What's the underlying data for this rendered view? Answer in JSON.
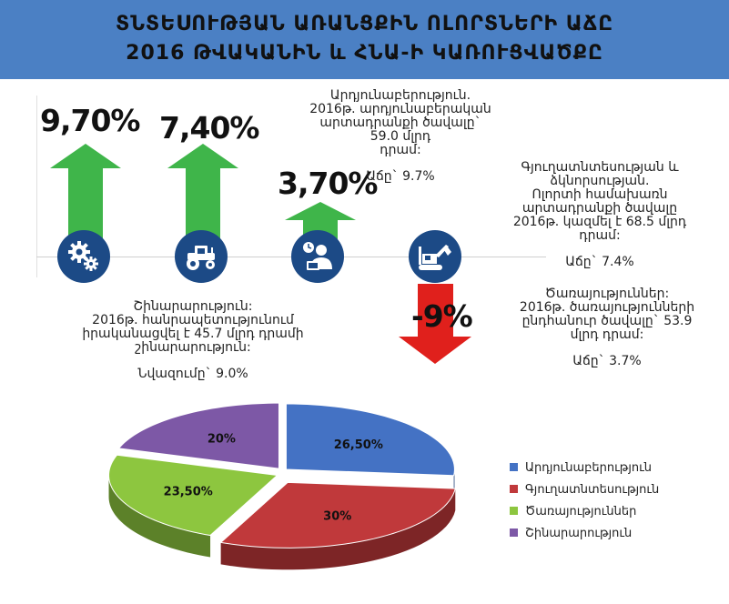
{
  "header": {
    "line1": "ՏՆՏԵՍՈՒԹՅԱՆ ԱՌԱՆՑՔԻՆ ՈԼՈՐՏՆԵՐԻ ԱՃԸ",
    "line2": "2016 ԹՎԱԿԱՆԻՆ և ՀՆԱ-Ի ԿԱՌՈՒՑՎԱԾՔԸ"
  },
  "indicators": [
    {
      "value": "9,70%",
      "direction": "up",
      "icon": "gears-icon"
    },
    {
      "value": "7,40%",
      "direction": "up",
      "icon": "tractor-icon"
    },
    {
      "value": "3,70%",
      "direction": "up",
      "icon": "service-person-icon"
    },
    {
      "value": "-9%",
      "direction": "down",
      "icon": "excavator-icon"
    }
  ],
  "notes": {
    "industry": {
      "text": "Արդյունաբերություն.\n2016թ. արդյունաբերական\nարտադրանքի ծավալը` 59.0 մլրդ\nդրամ:",
      "growth": "Աճը` 9.7%"
    },
    "agriculture": {
      "text": "Գյուղատնտեսության և\nձկնորսության.\nՈլորտի համախառն\nարտադրանքի ծավալը\n2016թ. կազմել է 68.5 մլրդ\nդրամ:",
      "growth": "Աճը` 7.4%"
    },
    "services": {
      "text": "Ծառայություններ:\n2016թ. ծառայությունների\nընդհանուր ծավալը` 53.9\nմլրդ դրամ:",
      "growth": "Աճը` 3.7%"
    },
    "construction": {
      "text": "Շինարարություն:\n2016թ. հանրապետությունում\nիրականացվել է 45.7 մլրդ դրամի\nշինարարություն:",
      "growth": "Նվազումը` 9.0%"
    }
  },
  "colors": {
    "header": "#4b80c4",
    "up_arrow": "#3fb54a",
    "down_arrow": "#e0201c",
    "icon_circle": "#1c4a86"
  },
  "chart_data": {
    "type": "pie",
    "title": "",
    "categories": [
      "Արդյունաբերություն",
      "Գյուղատնտեսություն",
      "Ծառայություններ",
      "Շինարարություն"
    ],
    "values": [
      26.5,
      30,
      23.5,
      20
    ],
    "data_labels": [
      "26,50%",
      "30%",
      "23,50%",
      "20%"
    ],
    "colors": [
      "#4472c4",
      "#c0393b",
      "#8dc63f",
      "#7d58a6"
    ],
    "legend": {
      "position": "right",
      "entries": [
        "Արդյունաբերություն",
        "Գյուղատնտեսություն",
        "Ծառայություններ",
        "Շինարարություն"
      ]
    }
  }
}
